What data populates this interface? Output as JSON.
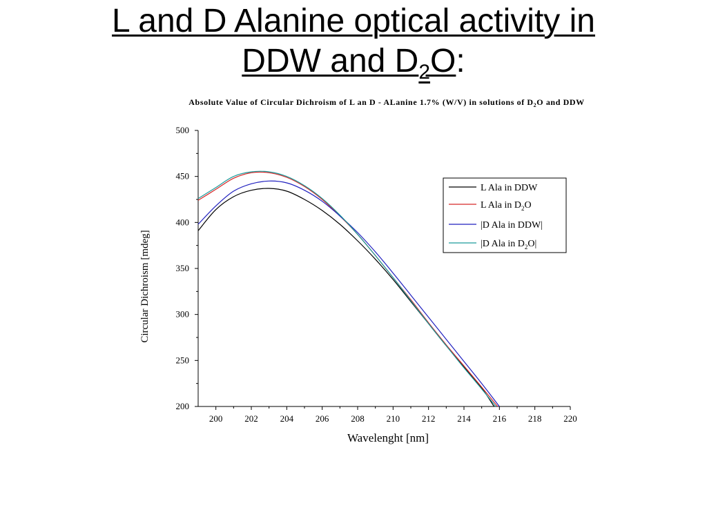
{
  "slide": {
    "title_line1": "L and D Alanine optical activity in",
    "title_line2_pre": "DDW and D",
    "title_line2_sub": "2",
    "title_line2_post": "O",
    "title_colon": ":"
  },
  "chart_data": {
    "type": "line",
    "title_pre": "Absolute Value of Circular Dichroism of L an D - ALanine 1.7% (W/V) in solutions of D",
    "title_sub": "2",
    "title_post": "O and DDW",
    "xlabel": "Wavelenght [nm]",
    "ylabel": "Circular Dichroism [mdeg]",
    "xlim": [
      199,
      220
    ],
    "ylim": [
      200,
      500
    ],
    "x_ticks": [
      200,
      202,
      204,
      206,
      208,
      210,
      212,
      214,
      216,
      218,
      220
    ],
    "y_ticks": [
      200,
      250,
      300,
      350,
      400,
      450,
      500
    ],
    "grid": false,
    "legend_position": "top-right",
    "series": [
      {
        "name": "L Ala in DDW",
        "legend_pre": "L Ala in DDW",
        "legend_sub": "",
        "legend_post": "",
        "color": "#000000",
        "points": [
          [
            199,
            391
          ],
          [
            200,
            414
          ],
          [
            201,
            428
          ],
          [
            202,
            435
          ],
          [
            203,
            437
          ],
          [
            204,
            434
          ],
          [
            205,
            425
          ],
          [
            206,
            413
          ],
          [
            207,
            398
          ],
          [
            208,
            380
          ],
          [
            209,
            360
          ],
          [
            210,
            338
          ],
          [
            211,
            314
          ],
          [
            212,
            290
          ],
          [
            213,
            266
          ],
          [
            214,
            243
          ],
          [
            215,
            220
          ],
          [
            215.7,
            200
          ]
        ]
      },
      {
        "name": "L Ala in D2O",
        "legend_pre": "L Ala in D",
        "legend_sub": "2",
        "legend_post": "O",
        "color": "#d62728",
        "points": [
          [
            199,
            424
          ],
          [
            200,
            436
          ],
          [
            201,
            448
          ],
          [
            202,
            454
          ],
          [
            203,
            454
          ],
          [
            204,
            449
          ],
          [
            205,
            439
          ],
          [
            206,
            425
          ],
          [
            207,
            407
          ],
          [
            208,
            387
          ],
          [
            209,
            364
          ],
          [
            210,
            340
          ],
          [
            211,
            316
          ],
          [
            212,
            291
          ],
          [
            213,
            267
          ],
          [
            214,
            244
          ],
          [
            215,
            221
          ],
          [
            215.9,
            200
          ]
        ]
      },
      {
        "name": "|D Ala in DDW|",
        "legend_pre": "|D Ala in DDW|",
        "legend_sub": "",
        "legend_post": "",
        "color": "#1f1fbf",
        "points": [
          [
            199,
            398
          ],
          [
            200,
            418
          ],
          [
            201,
            434
          ],
          [
            202,
            442
          ],
          [
            203,
            445
          ],
          [
            204,
            443
          ],
          [
            205,
            435
          ],
          [
            206,
            423
          ],
          [
            207,
            407
          ],
          [
            208,
            389
          ],
          [
            209,
            368
          ],
          [
            210,
            345
          ],
          [
            211,
            321
          ],
          [
            212,
            297
          ],
          [
            213,
            273
          ],
          [
            214,
            249
          ],
          [
            215,
            225
          ],
          [
            216,
            200
          ]
        ]
      },
      {
        "name": "|D Ala in D2O|",
        "legend_pre": "|D Ala in D",
        "legend_sub": "2",
        "legend_post": "O|",
        "color": "#1a9a9a",
        "points": [
          [
            199,
            426
          ],
          [
            200,
            438
          ],
          [
            201,
            450
          ],
          [
            202,
            455
          ],
          [
            203,
            455
          ],
          [
            204,
            450
          ],
          [
            205,
            440
          ],
          [
            206,
            426
          ],
          [
            207,
            408
          ],
          [
            208,
            387
          ],
          [
            209,
            364
          ],
          [
            210,
            340
          ],
          [
            211,
            315
          ],
          [
            212,
            290
          ],
          [
            213,
            266
          ],
          [
            214,
            242
          ],
          [
            215,
            219
          ],
          [
            215.8,
            200
          ]
        ]
      }
    ]
  }
}
